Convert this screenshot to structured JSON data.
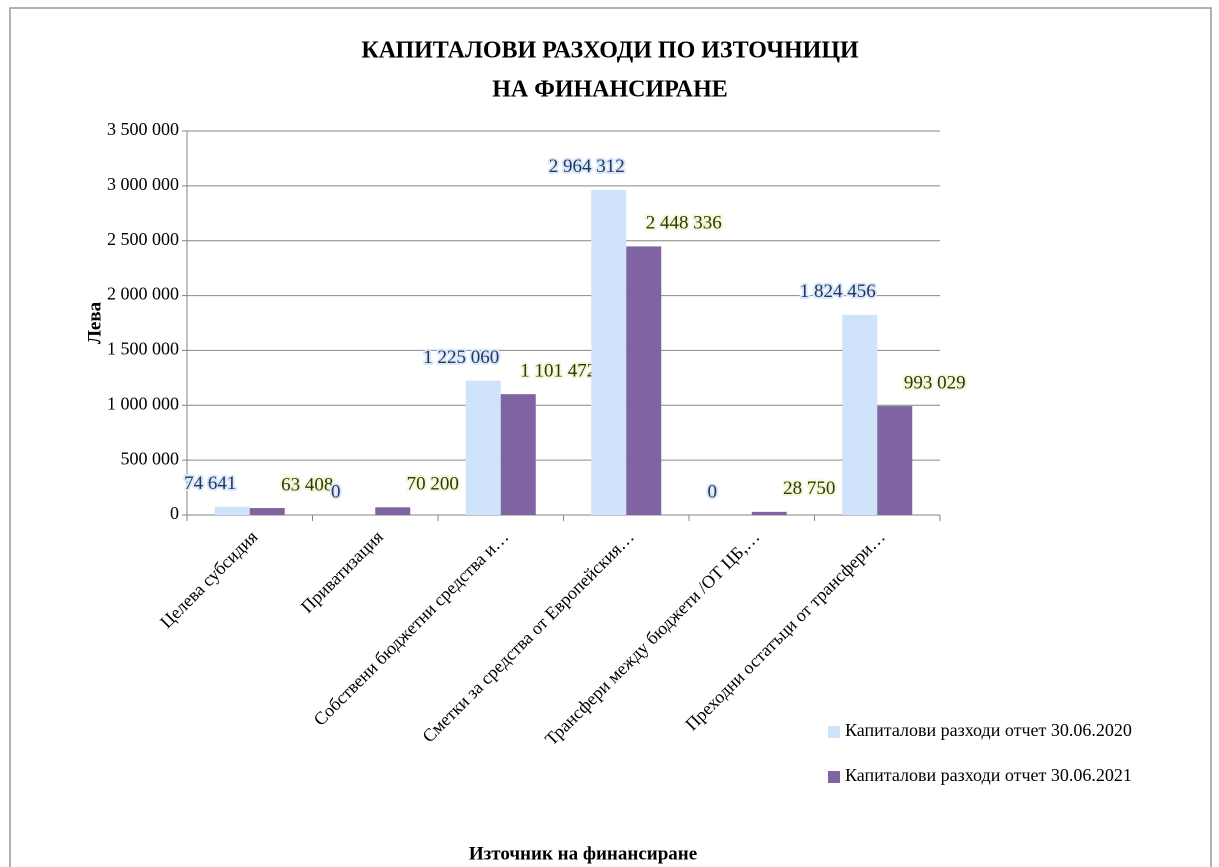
{
  "chart_data": {
    "type": "bar",
    "title": [
      "КАПИТАЛОВИ  РАЗХОДИ ПО ИЗТОЧНИЦИ",
      "НА ФИНАНСИРАНЕ"
    ],
    "y_label": "Лева",
    "x_label": "Източник на финансиране",
    "categories": [
      "Целева субсидия",
      "Приватизация",
      "Собствени бюджетни средства и…",
      "Сметки за средства от Европейския…",
      "Трансфери между бюджети /ОТ ЦБ,…",
      "Преходни остатъци от трансфери…"
    ],
    "series": [
      {
        "name": "Капиталови разходи отчет 30.06.2020",
        "color": "#cfe3fa",
        "label_color": "#1f3864",
        "values": [
          74641,
          0,
          1225060,
          2964312,
          0,
          1824456
        ],
        "value_labels": [
          "74 641",
          "0",
          "1 225 060",
          "2 964 312",
          "0",
          "1 824 456"
        ]
      },
      {
        "name": "Капиталови разходи отчет 30.06.2021",
        "color": "#8064a2",
        "label_color": "#2d3a06",
        "values": [
          63408,
          70200,
          1101472,
          2448336,
          28750,
          993029
        ],
        "value_labels": [
          "63 408",
          "70 200",
          "1 101 472",
          "2 448 336",
          "28 750",
          "993 029"
        ]
      }
    ],
    "ylim": [
      0,
      3500000
    ],
    "yticks": [
      0,
      {
        "value": 500000,
        "label": "500 000"
      },
      {
        "value": 1000000,
        "label": "1 000 000"
      },
      {
        "value": 1500000,
        "label": "1 500 000"
      },
      {
        "value": 2000000,
        "label": "2 000 000"
      },
      {
        "value": 2500000,
        "label": "2 500 000"
      },
      {
        "value": 3000000,
        "label": "3 000 000"
      },
      {
        "value": 3500000,
        "label": "3 500 000"
      }
    ],
    "grid": true,
    "legend": "bottom-right"
  }
}
